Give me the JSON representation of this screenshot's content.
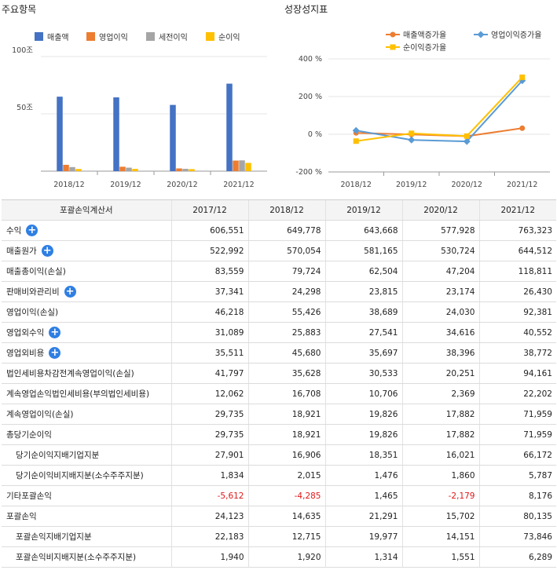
{
  "main_chart": {
    "title": "주요항목",
    "chart_data": {
      "type": "bar",
      "categories": [
        "2018/12",
        "2019/12",
        "2020/12",
        "2021/12"
      ],
      "series": [
        {
          "name": "매출액",
          "color": "#4472C4",
          "values": [
            64.98,
            64.37,
            57.79,
            76.33
          ]
        },
        {
          "name": "영업이익",
          "color": "#ED7D31",
          "values": [
            5.54,
            3.87,
            2.4,
            9.24
          ]
        },
        {
          "name": "세전이익",
          "color": "#A5A5A5",
          "values": [
            3.56,
            3.05,
            2.03,
            9.42
          ]
        },
        {
          "name": "순이익",
          "color": "#FFC000",
          "values": [
            1.89,
            1.98,
            1.79,
            7.2
          ]
        }
      ],
      "yticks": [
        {
          "value": 50,
          "label": "50조"
        },
        {
          "value": 100,
          "label": "100조"
        }
      ],
      "ylim": [
        0,
        100
      ],
      "legend": "top"
    }
  },
  "growth_chart": {
    "title": "성장성지표",
    "chart_data": {
      "type": "line",
      "categories": [
        "2018/12",
        "2019/12",
        "2020/12",
        "2021/12"
      ],
      "series": [
        {
          "name": "매출액증가율",
          "color": "#ED7D31",
          "marker": "circle",
          "values": [
            7.1,
            -0.9,
            -10.2,
            32.1
          ]
        },
        {
          "name": "영업이익증가율",
          "color": "#5B9BD5",
          "marker": "diamond",
          "values": [
            20.0,
            -30.2,
            -37.9,
            284.4
          ]
        },
        {
          "name": "순이익증가율",
          "color": "#FFC000",
          "marker": "square",
          "values": [
            -36.4,
            4.8,
            -9.8,
            302.4
          ]
        }
      ],
      "yticks": [
        {
          "value": -200,
          "label": "-200 %"
        },
        {
          "value": 0,
          "label": "0 %"
        },
        {
          "value": 200,
          "label": "200 %"
        },
        {
          "value": 400,
          "label": "400 %"
        }
      ],
      "ylim": [
        -200,
        400
      ],
      "legend": "top"
    }
  },
  "table": {
    "headers": [
      "포괄손익계산서",
      "2017/12",
      "2018/12",
      "2019/12",
      "2020/12",
      "2021/12"
    ],
    "rows": [
      {
        "label": "수익",
        "expand": true,
        "indent": false,
        "values": [
          "606,551",
          "649,778",
          "643,668",
          "577,928",
          "763,323"
        ]
      },
      {
        "label": "매출원가",
        "expand": true,
        "indent": false,
        "values": [
          "522,992",
          "570,054",
          "581,165",
          "530,724",
          "644,512"
        ]
      },
      {
        "label": "매출총이익(손실)",
        "expand": false,
        "indent": false,
        "values": [
          "83,559",
          "79,724",
          "62,504",
          "47,204",
          "118,811"
        ]
      },
      {
        "label": "판매비와관리비",
        "expand": true,
        "indent": false,
        "values": [
          "37,341",
          "24,298",
          "23,815",
          "23,174",
          "26,430"
        ]
      },
      {
        "label": "영업이익(손실)",
        "expand": false,
        "indent": false,
        "values": [
          "46,218",
          "55,426",
          "38,689",
          "24,030",
          "92,381"
        ]
      },
      {
        "label": "영업외수익",
        "expand": true,
        "indent": false,
        "values": [
          "31,089",
          "25,883",
          "27,541",
          "34,616",
          "40,552"
        ]
      },
      {
        "label": "영업외비용",
        "expand": true,
        "indent": false,
        "values": [
          "35,511",
          "45,680",
          "35,697",
          "38,396",
          "38,772"
        ]
      },
      {
        "label": "법인세비용차감전계속영업이익(손실)",
        "expand": false,
        "indent": false,
        "values": [
          "41,797",
          "35,628",
          "30,533",
          "20,251",
          "94,161"
        ]
      },
      {
        "label": "계속영업손익법인세비용(부의법인세비용)",
        "expand": false,
        "indent": false,
        "values": [
          "12,062",
          "16,708",
          "10,706",
          "2,369",
          "22,202"
        ]
      },
      {
        "label": "계속영업이익(손실)",
        "expand": false,
        "indent": false,
        "values": [
          "29,735",
          "18,921",
          "19,826",
          "17,882",
          "71,959"
        ]
      },
      {
        "label": "총당기순이익",
        "expand": false,
        "indent": false,
        "values": [
          "29,735",
          "18,921",
          "19,826",
          "17,882",
          "71,959"
        ]
      },
      {
        "label": "당기순이익지배기업지분",
        "expand": false,
        "indent": true,
        "values": [
          "27,901",
          "16,906",
          "18,351",
          "16,021",
          "66,172"
        ]
      },
      {
        "label": "당기순이익비지배지분(소수주주지분)",
        "expand": false,
        "indent": true,
        "values": [
          "1,834",
          "2,015",
          "1,476",
          "1,860",
          "5,787"
        ]
      },
      {
        "label": "기타포괄손익",
        "expand": false,
        "indent": false,
        "values": [
          "-5,612",
          "-4,285",
          "1,465",
          "-2,179",
          "8,176"
        ]
      },
      {
        "label": "포괄손익",
        "expand": false,
        "indent": false,
        "values": [
          "24,123",
          "14,635",
          "21,291",
          "15,702",
          "80,135"
        ]
      },
      {
        "label": "포괄손익지배기업지분",
        "expand": false,
        "indent": true,
        "values": [
          "22,183",
          "12,715",
          "19,977",
          "14,151",
          "73,846"
        ]
      },
      {
        "label": "포괄손익비지배지분(소수주주지분)",
        "expand": false,
        "indent": true,
        "values": [
          "1,940",
          "1,920",
          "1,314",
          "1,551",
          "6,289"
        ]
      }
    ],
    "expand_symbol": "+"
  }
}
